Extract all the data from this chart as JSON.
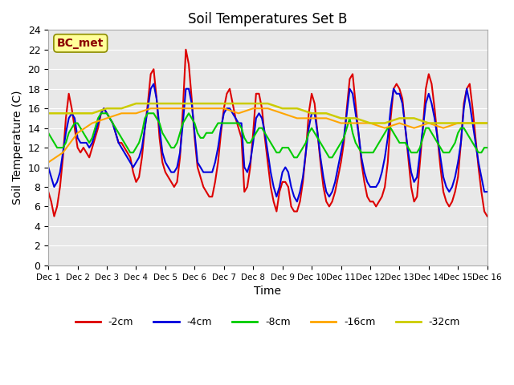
{
  "title": "Soil Temperatures Set B",
  "xlabel": "Time",
  "ylabel": "Soil Temperature (C)",
  "xlim": [
    0,
    15
  ],
  "ylim": [
    0,
    24
  ],
  "xtick_labels": [
    "Dec 1",
    "Dec 2",
    "Dec 3",
    "Dec 4",
    "Dec 5",
    "Dec 6",
    "Dec 7",
    "Dec 8",
    "Dec 9",
    "Dec 10",
    "Dec 11",
    "Dec 12",
    "Dec 13",
    "Dec 14",
    "Dec 15",
    "Dec 16"
  ],
  "ytick_values": [
    0,
    2,
    4,
    6,
    8,
    10,
    12,
    14,
    16,
    18,
    20,
    22,
    24
  ],
  "annotation_text": "BC_met",
  "annotation_color": "#8B0000",
  "annotation_bg": "#FFFF99",
  "bg_color": "#E8E8E8",
  "series": [
    {
      "label": "-2cm",
      "color": "#DD0000",
      "linewidth": 1.5,
      "x": [
        0,
        0.1,
        0.2,
        0.3,
        0.4,
        0.5,
        0.6,
        0.7,
        0.8,
        0.9,
        1.0,
        1.1,
        1.2,
        1.3,
        1.4,
        1.5,
        1.6,
        1.7,
        1.8,
        1.9,
        2.0,
        2.1,
        2.2,
        2.3,
        2.4,
        2.5,
        2.6,
        2.7,
        2.8,
        2.9,
        3.0,
        3.1,
        3.2,
        3.3,
        3.4,
        3.5,
        3.6,
        3.7,
        3.8,
        3.9,
        4.0,
        4.1,
        4.2,
        4.3,
        4.4,
        4.5,
        4.6,
        4.7,
        4.8,
        4.9,
        5.0,
        5.1,
        5.2,
        5.3,
        5.4,
        5.5,
        5.6,
        5.7,
        5.8,
        5.9,
        6.0,
        6.1,
        6.2,
        6.3,
        6.4,
        6.5,
        6.6,
        6.7,
        6.8,
        6.9,
        7.0,
        7.1,
        7.2,
        7.3,
        7.4,
        7.5,
        7.6,
        7.7,
        7.8,
        7.9,
        8.0,
        8.1,
        8.2,
        8.3,
        8.4,
        8.5,
        8.6,
        8.7,
        8.8,
        8.9,
        9.0,
        9.1,
        9.2,
        9.3,
        9.4,
        9.5,
        9.6,
        9.7,
        9.8,
        9.9,
        10.0,
        10.1,
        10.2,
        10.3,
        10.4,
        10.5,
        10.6,
        10.7,
        10.8,
        10.9,
        11.0,
        11.1,
        11.2,
        11.3,
        11.4,
        11.5,
        11.6,
        11.7,
        11.8,
        11.9,
        12.0,
        12.1,
        12.2,
        12.3,
        12.4,
        12.5,
        12.6,
        12.7,
        12.8,
        12.9,
        13.0,
        13.1,
        13.2,
        13.3,
        13.4,
        13.5,
        13.6,
        13.7,
        13.8,
        13.9,
        14.0,
        14.1,
        14.2,
        14.3,
        14.4,
        14.5,
        14.6,
        14.7,
        14.8,
        14.9,
        15.0
      ],
      "y": [
        7.5,
        6.5,
        5.0,
        6.0,
        8.0,
        11.0,
        15.0,
        17.5,
        16.0,
        14.0,
        12.0,
        11.5,
        12.0,
        11.5,
        11.0,
        12.0,
        13.0,
        14.0,
        15.5,
        16.0,
        15.5,
        15.0,
        14.5,
        13.5,
        12.5,
        12.5,
        12.0,
        11.5,
        11.0,
        9.5,
        8.5,
        9.0,
        11.0,
        14.0,
        16.5,
        19.5,
        20.0,
        17.0,
        13.0,
        10.5,
        9.5,
        9.0,
        8.5,
        8.0,
        8.5,
        11.0,
        16.0,
        22.0,
        20.5,
        17.0,
        13.0,
        10.0,
        9.0,
        8.0,
        7.5,
        7.0,
        7.0,
        8.5,
        10.5,
        13.5,
        16.0,
        17.5,
        18.0,
        16.5,
        15.0,
        14.0,
        13.0,
        7.5,
        8.0,
        10.0,
        13.5,
        17.5,
        17.5,
        16.0,
        13.0,
        10.5,
        8.0,
        6.5,
        5.5,
        7.5,
        8.5,
        8.5,
        8.0,
        6.0,
        5.5,
        5.5,
        6.5,
        8.5,
        11.5,
        15.5,
        17.5,
        16.5,
        13.5,
        10.5,
        8.0,
        6.5,
        6.0,
        6.5,
        7.5,
        9.0,
        10.5,
        12.5,
        16.0,
        19.0,
        19.5,
        16.5,
        13.5,
        10.5,
        8.5,
        7.0,
        6.5,
        6.5,
        6.0,
        6.5,
        7.0,
        8.0,
        10.5,
        15.0,
        18.0,
        18.5,
        18.0,
        17.0,
        14.0,
        11.0,
        8.0,
        6.5,
        7.0,
        10.5,
        14.0,
        18.0,
        19.5,
        18.5,
        16.0,
        13.0,
        10.0,
        7.5,
        6.5,
        6.0,
        6.5,
        7.5,
        9.0,
        12.5,
        16.5,
        18.0,
        18.5,
        16.0,
        13.0,
        10.0,
        7.5,
        5.5,
        5.0
      ]
    },
    {
      "label": "-4cm",
      "color": "#0000DD",
      "linewidth": 1.5,
      "x": [
        0,
        0.1,
        0.2,
        0.3,
        0.4,
        0.5,
        0.6,
        0.7,
        0.8,
        0.9,
        1.0,
        1.1,
        1.2,
        1.3,
        1.4,
        1.5,
        1.6,
        1.7,
        1.8,
        1.9,
        2.0,
        2.1,
        2.2,
        2.3,
        2.4,
        2.5,
        2.6,
        2.7,
        2.8,
        2.9,
        3.0,
        3.1,
        3.2,
        3.3,
        3.4,
        3.5,
        3.6,
        3.7,
        3.8,
        3.9,
        4.0,
        4.1,
        4.2,
        4.3,
        4.4,
        4.5,
        4.6,
        4.7,
        4.8,
        4.9,
        5.0,
        5.1,
        5.2,
        5.3,
        5.4,
        5.5,
        5.6,
        5.7,
        5.8,
        5.9,
        6.0,
        6.1,
        6.2,
        6.3,
        6.4,
        6.5,
        6.6,
        6.7,
        6.8,
        6.9,
        7.0,
        7.1,
        7.2,
        7.3,
        7.4,
        7.5,
        7.6,
        7.7,
        7.8,
        7.9,
        8.0,
        8.1,
        8.2,
        8.3,
        8.4,
        8.5,
        8.6,
        8.7,
        8.8,
        8.9,
        9.0,
        9.1,
        9.2,
        9.3,
        9.4,
        9.5,
        9.6,
        9.7,
        9.8,
        9.9,
        10.0,
        10.1,
        10.2,
        10.3,
        10.4,
        10.5,
        10.6,
        10.7,
        10.8,
        10.9,
        11.0,
        11.1,
        11.2,
        11.3,
        11.4,
        11.5,
        11.6,
        11.7,
        11.8,
        11.9,
        12.0,
        12.1,
        12.2,
        12.3,
        12.4,
        12.5,
        12.6,
        12.7,
        12.8,
        12.9,
        13.0,
        13.1,
        13.2,
        13.3,
        13.4,
        13.5,
        13.6,
        13.7,
        13.8,
        13.9,
        14.0,
        14.1,
        14.2,
        14.3,
        14.4,
        14.5,
        14.6,
        14.7,
        14.8,
        14.9,
        15.0
      ],
      "y": [
        10.0,
        9.0,
        8.0,
        8.5,
        9.5,
        11.5,
        13.5,
        15.0,
        15.5,
        15.0,
        13.0,
        12.5,
        12.5,
        12.5,
        12.0,
        12.5,
        13.5,
        14.5,
        15.5,
        16.0,
        15.5,
        15.0,
        14.5,
        13.5,
        12.5,
        12.0,
        11.5,
        11.0,
        10.5,
        10.0,
        10.5,
        11.0,
        12.0,
        14.0,
        16.0,
        18.0,
        18.5,
        17.0,
        14.0,
        11.5,
        10.5,
        10.0,
        9.5,
        9.5,
        10.0,
        11.5,
        14.5,
        18.0,
        18.0,
        16.5,
        13.5,
        10.5,
        10.0,
        9.5,
        9.5,
        9.5,
        9.5,
        10.5,
        12.0,
        14.0,
        15.5,
        16.0,
        16.0,
        15.5,
        15.0,
        14.5,
        14.5,
        10.0,
        9.5,
        10.5,
        12.5,
        15.0,
        15.5,
        15.0,
        13.5,
        11.5,
        9.5,
        8.0,
        7.0,
        8.0,
        9.5,
        10.0,
        9.5,
        8.0,
        7.0,
        6.5,
        7.5,
        9.0,
        11.5,
        14.0,
        15.5,
        15.5,
        13.5,
        11.0,
        9.0,
        7.5,
        7.0,
        7.5,
        8.5,
        10.0,
        11.5,
        13.0,
        15.5,
        18.0,
        17.5,
        15.5,
        13.5,
        11.0,
        9.5,
        8.5,
        8.0,
        8.0,
        8.0,
        8.5,
        9.5,
        11.0,
        13.0,
        16.0,
        18.0,
        17.5,
        17.5,
        16.5,
        14.0,
        11.5,
        9.5,
        8.5,
        9.0,
        11.5,
        14.0,
        16.5,
        17.5,
        16.5,
        15.0,
        13.0,
        11.0,
        9.0,
        8.0,
        7.5,
        8.0,
        9.0,
        10.5,
        12.5,
        16.0,
        18.0,
        16.5,
        14.5,
        12.5,
        10.5,
        9.0,
        7.5,
        7.5
      ]
    },
    {
      "label": "-8cm",
      "color": "#00CC00",
      "linewidth": 1.5,
      "x": [
        0,
        0.1,
        0.2,
        0.3,
        0.4,
        0.5,
        0.6,
        0.7,
        0.8,
        0.9,
        1.0,
        1.1,
        1.2,
        1.3,
        1.4,
        1.5,
        1.6,
        1.7,
        1.8,
        1.9,
        2.0,
        2.1,
        2.2,
        2.3,
        2.4,
        2.5,
        2.6,
        2.7,
        2.8,
        2.9,
        3.0,
        3.1,
        3.2,
        3.3,
        3.4,
        3.5,
        3.6,
        3.7,
        3.8,
        3.9,
        4.0,
        4.1,
        4.2,
        4.3,
        4.4,
        4.5,
        4.6,
        4.7,
        4.8,
        4.9,
        5.0,
        5.1,
        5.2,
        5.3,
        5.4,
        5.5,
        5.6,
        5.7,
        5.8,
        5.9,
        6.0,
        6.1,
        6.2,
        6.3,
        6.4,
        6.5,
        6.6,
        6.7,
        6.8,
        6.9,
        7.0,
        7.1,
        7.2,
        7.3,
        7.4,
        7.5,
        7.6,
        7.7,
        7.8,
        7.9,
        8.0,
        8.1,
        8.2,
        8.3,
        8.4,
        8.5,
        8.6,
        8.7,
        8.8,
        8.9,
        9.0,
        9.1,
        9.2,
        9.3,
        9.4,
        9.5,
        9.6,
        9.7,
        9.8,
        9.9,
        10.0,
        10.1,
        10.2,
        10.3,
        10.4,
        10.5,
        10.6,
        10.7,
        10.8,
        10.9,
        11.0,
        11.1,
        11.2,
        11.3,
        11.4,
        11.5,
        11.6,
        11.7,
        11.8,
        11.9,
        12.0,
        12.1,
        12.2,
        12.3,
        12.4,
        12.5,
        12.6,
        12.7,
        12.8,
        12.9,
        13.0,
        13.1,
        13.2,
        13.3,
        13.4,
        13.5,
        13.6,
        13.7,
        13.8,
        13.9,
        14.0,
        14.1,
        14.2,
        14.3,
        14.4,
        14.5,
        14.6,
        14.7,
        14.8,
        14.9,
        15.0
      ],
      "y": [
        13.5,
        13.0,
        12.5,
        12.0,
        12.0,
        12.0,
        12.5,
        13.5,
        14.0,
        14.5,
        14.5,
        14.0,
        13.5,
        13.0,
        12.5,
        13.0,
        14.0,
        15.0,
        15.5,
        15.5,
        15.5,
        15.0,
        14.5,
        14.0,
        13.5,
        13.0,
        12.5,
        12.0,
        11.5,
        11.5,
        12.0,
        12.5,
        13.5,
        15.0,
        15.5,
        15.5,
        15.5,
        15.0,
        14.5,
        13.5,
        13.0,
        12.5,
        12.0,
        12.0,
        12.5,
        13.5,
        14.5,
        15.0,
        15.5,
        15.0,
        14.5,
        13.5,
        13.0,
        13.0,
        13.5,
        13.5,
        13.5,
        14.0,
        14.5,
        14.5,
        14.5,
        14.5,
        14.5,
        14.5,
        14.5,
        14.5,
        14.0,
        13.0,
        12.5,
        12.5,
        13.0,
        13.5,
        14.0,
        14.0,
        13.5,
        13.0,
        12.5,
        12.0,
        11.5,
        11.5,
        12.0,
        12.0,
        12.0,
        11.5,
        11.0,
        11.0,
        11.5,
        12.0,
        12.5,
        13.5,
        14.0,
        13.5,
        13.0,
        12.5,
        12.0,
        11.5,
        11.0,
        11.0,
        11.5,
        12.0,
        12.5,
        13.0,
        14.0,
        15.0,
        13.5,
        12.5,
        12.0,
        11.5,
        11.5,
        11.5,
        11.5,
        11.5,
        12.0,
        12.5,
        13.0,
        13.5,
        14.0,
        14.0,
        13.5,
        13.0,
        12.5,
        12.5,
        12.5,
        12.0,
        11.5,
        11.5,
        11.5,
        12.0,
        13.0,
        14.0,
        14.0,
        13.5,
        13.0,
        12.5,
        12.0,
        11.5,
        11.5,
        11.5,
        12.0,
        12.5,
        13.5,
        14.0,
        14.0,
        13.5,
        13.0,
        12.5,
        12.0,
        11.5,
        11.5,
        12.0,
        12.0
      ]
    },
    {
      "label": "-16cm",
      "color": "#FFA500",
      "linewidth": 1.5,
      "x": [
        0,
        0.5,
        1.0,
        1.5,
        2.0,
        2.5,
        3.0,
        3.5,
        4.0,
        4.5,
        5.0,
        5.5,
        6.0,
        6.5,
        7.0,
        7.5,
        8.0,
        8.5,
        9.0,
        9.5,
        10.0,
        10.5,
        11.0,
        11.5,
        12.0,
        12.5,
        13.0,
        13.5,
        14.0,
        14.5,
        15.0
      ],
      "y": [
        10.5,
        11.5,
        13.5,
        14.5,
        15.0,
        15.5,
        15.5,
        16.0,
        16.0,
        16.0,
        16.0,
        16.0,
        16.0,
        15.5,
        16.0,
        16.0,
        15.5,
        15.0,
        15.0,
        15.0,
        14.5,
        14.5,
        14.5,
        14.0,
        14.5,
        14.0,
        14.5,
        14.0,
        14.5,
        14.5,
        14.5
      ]
    },
    {
      "label": "-32cm",
      "color": "#CCCC00",
      "linewidth": 1.8,
      "x": [
        0,
        0.5,
        1.0,
        1.5,
        2.0,
        2.5,
        3.0,
        3.5,
        4.0,
        4.5,
        5.0,
        5.5,
        6.0,
        6.5,
        7.0,
        7.5,
        8.0,
        8.5,
        9.0,
        9.5,
        10.0,
        10.5,
        11.0,
        11.5,
        12.0,
        12.5,
        13.0,
        13.5,
        14.0,
        14.5,
        15.0
      ],
      "y": [
        15.5,
        15.5,
        15.5,
        15.5,
        16.0,
        16.0,
        16.5,
        16.5,
        16.5,
        16.5,
        16.5,
        16.5,
        16.5,
        16.5,
        16.5,
        16.5,
        16.0,
        16.0,
        15.5,
        15.5,
        15.0,
        15.0,
        14.5,
        14.5,
        15.0,
        15.0,
        14.5,
        14.5,
        14.5,
        14.5,
        14.5
      ]
    }
  ]
}
